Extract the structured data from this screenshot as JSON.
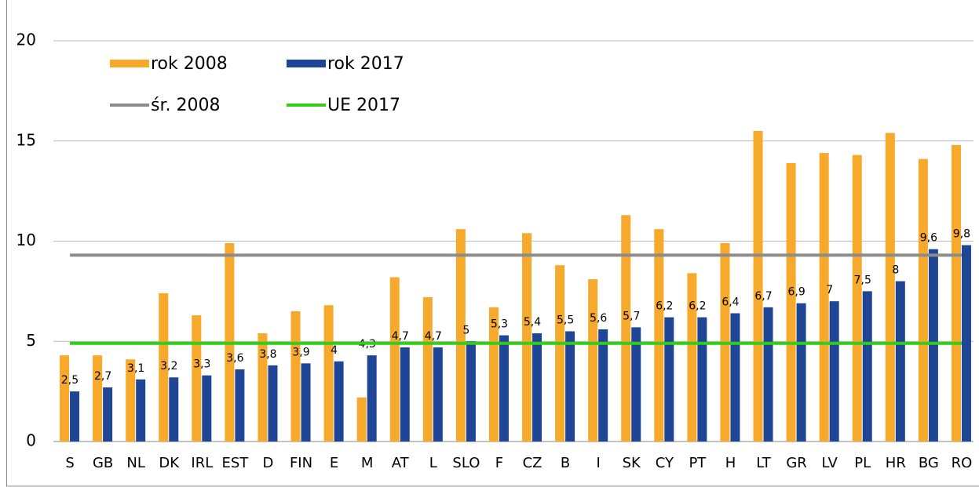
{
  "chart_data": {
    "type": "bar",
    "categories": [
      "S",
      "GB",
      "NL",
      "DK",
      "IRL",
      "EST",
      "D",
      "FIN",
      "E",
      "M",
      "AT",
      "L",
      "SLO",
      "F",
      "CZ",
      "B",
      "I",
      "SK",
      "CY",
      "PT",
      "H",
      "LT",
      "GR",
      "LV",
      "PL",
      "HR",
      "BG",
      "RO"
    ],
    "series": [
      {
        "name": "rok 2008",
        "color": "#f7a92c",
        "values": [
          4.3,
          4.3,
          4.1,
          7.4,
          6.3,
          9.9,
          5.4,
          6.5,
          6.8,
          2.2,
          8.2,
          7.2,
          10.6,
          6.7,
          10.4,
          8.8,
          8.1,
          11.3,
          10.6,
          8.4,
          9.9,
          15.5,
          13.9,
          14.4,
          14.3,
          15.4,
          14.1,
          14.8
        ]
      },
      {
        "name": "rok 2017",
        "color": "#1f4597",
        "values": [
          2.5,
          2.7,
          3.1,
          3.2,
          3.3,
          3.6,
          3.8,
          3.9,
          4,
          4.3,
          4.7,
          4.7,
          5,
          5.3,
          5.4,
          5.5,
          5.6,
          5.7,
          6.2,
          6.2,
          6.4,
          6.7,
          6.9,
          7,
          7.5,
          8,
          9.6,
          9.8
        ],
        "value_labels": [
          "2,5",
          "2,7",
          "3,1",
          "3,2",
          "3,3",
          "3,6",
          "3,8",
          "3,9",
          "4",
          "4,3",
          "4,7",
          "4,7",
          "5",
          "5,3",
          "5,4",
          "5,5",
          "5,6",
          "5,7",
          "6,2",
          "6,2",
          "6,4",
          "6,7",
          "6,9",
          "7",
          "7,5",
          "8",
          "9,6",
          "9,8"
        ]
      }
    ],
    "lines": [
      {
        "name": "śr. 2008",
        "color": "#8c8c8c",
        "value": 9.3
      },
      {
        "name": "UE 2017",
        "color": "#33cc1a",
        "value": 4.9
      }
    ],
    "ylim": [
      0,
      20
    ],
    "yticks": [
      0,
      5,
      10,
      15,
      20
    ],
    "grid": true
  }
}
